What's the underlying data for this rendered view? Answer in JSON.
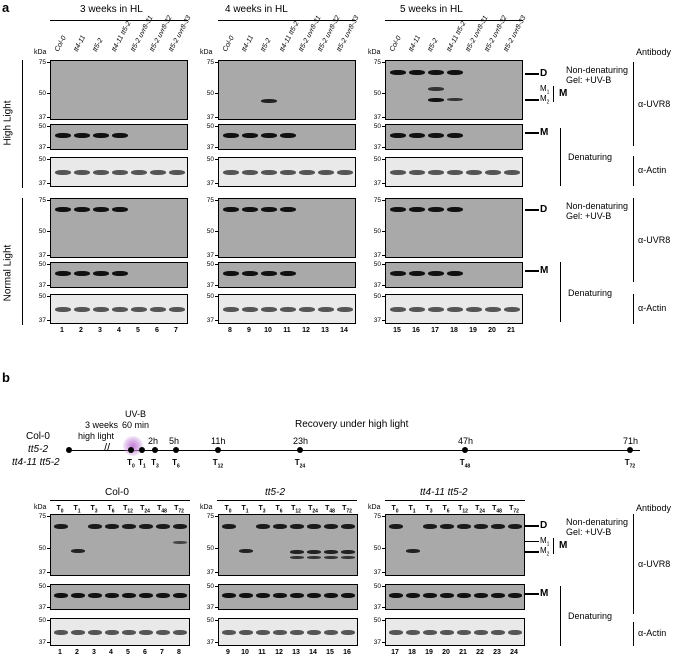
{
  "panel_a": {
    "letter": "a",
    "groups": [
      "3 weeks in HL",
      "4 weeks in HL",
      "5 weeks in HL"
    ],
    "kda": "kDa",
    "lanes": [
      "Col-0",
      "tt4-11",
      "tt5-2",
      "tt4-11 tt5-2",
      "tt5-2 uvr8-31",
      "tt5-2 uvr8-32",
      "tt5-2 uvr8-33"
    ],
    "row_labels": [
      "High Light",
      "Normal Light"
    ],
    "markers": [
      "75",
      "50",
      "37"
    ],
    "lane_numbers": [
      "1",
      "2",
      "3",
      "4",
      "5",
      "6",
      "7",
      "8",
      "9",
      "10",
      "11",
      "12",
      "13",
      "14",
      "15",
      "16",
      "17",
      "18",
      "19",
      "20",
      "21"
    ],
    "antibody_header": "Antibody",
    "nondenat_line1": "Non-denaturing",
    "nondenat_line2": "Gel: +UV-B",
    "denaturing": "Denaturing",
    "ab_uvr8": "α-UVR8",
    "ab_actin": "α-Actin",
    "D": "D",
    "M": "M",
    "M1": "M",
    "M1_sub": "1",
    "M2": "M",
    "M2_sub": "2"
  },
  "panel_b": {
    "letter": "b",
    "genotypes": [
      "Col-0",
      "tt5-2",
      "tt4-11 tt5-2"
    ],
    "timeline_note_1": "3 weeks",
    "timeline_note_2": "high light",
    "uvb_1": "UV-B",
    "uvb_2": "60 min",
    "recovery": "Recovery under high light",
    "hours": [
      "2h",
      "5h",
      "11h",
      "23h",
      "47h",
      "71h"
    ],
    "tpoints": [
      {
        "base": "T",
        "sub": "0"
      },
      {
        "base": "T",
        "sub": "1"
      },
      {
        "base": "T",
        "sub": "3"
      },
      {
        "base": "T",
        "sub": "6"
      },
      {
        "base": "T",
        "sub": "12"
      },
      {
        "base": "T",
        "sub": "24"
      },
      {
        "base": "T",
        "sub": "48"
      },
      {
        "base": "T",
        "sub": "72"
      }
    ],
    "kda": "kDa",
    "markers": [
      "75",
      "50",
      "37"
    ],
    "lane_numbers": [
      "1",
      "2",
      "3",
      "4",
      "5",
      "6",
      "7",
      "8",
      "9",
      "10",
      "11",
      "12",
      "13",
      "14",
      "15",
      "16",
      "17",
      "18",
      "19",
      "20",
      "21",
      "22",
      "23",
      "24"
    ],
    "antibody_header": "Antibody",
    "nondenat_line1": "Non-denaturing",
    "nondenat_line2": "Gel: +UV-B",
    "denaturing": "Denaturing",
    "ab_uvr8": "α-UVR8",
    "ab_actin": "α-Actin",
    "D": "D",
    "M": "M",
    "M1": "M",
    "M1_sub": "1",
    "M2": "M",
    "M2_sub": "2"
  }
}
